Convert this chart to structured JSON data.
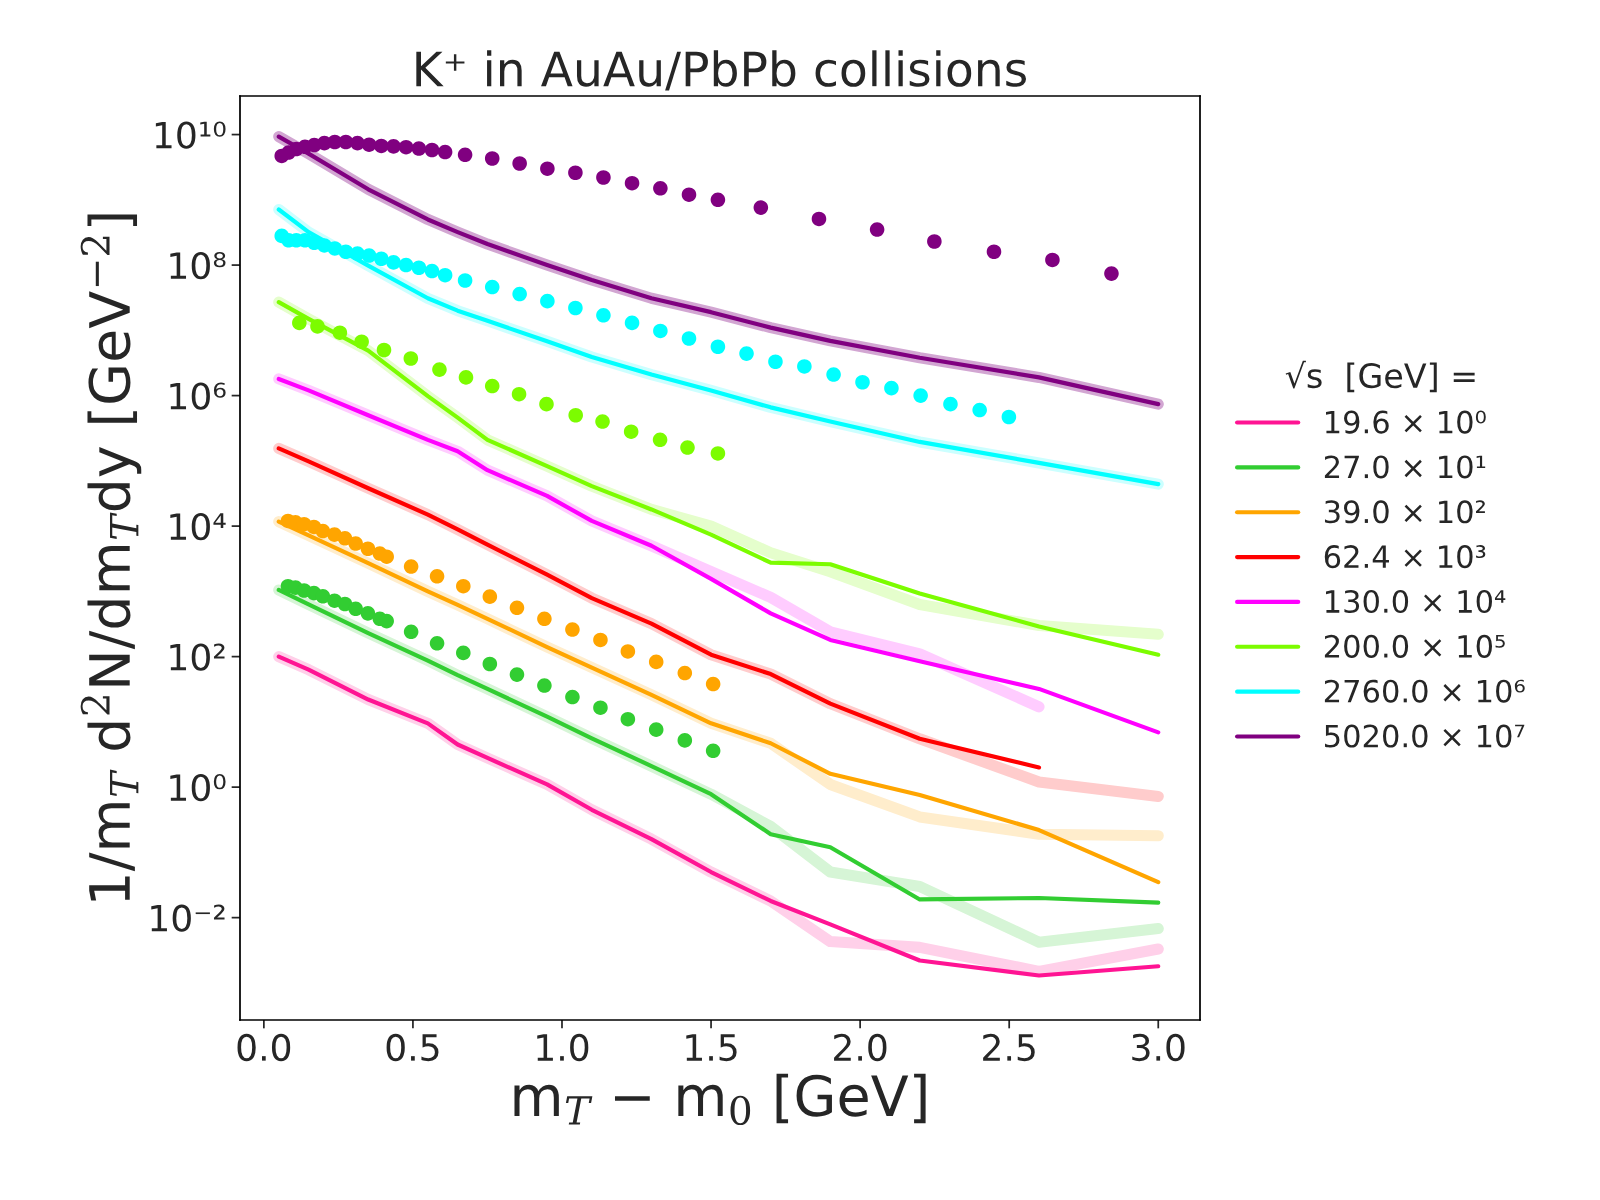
{
  "chart_data": {
    "type": "line",
    "title": "K⁺ in AuAu/PbPb collisions",
    "xlabel": "m$_{T}$ − m$_{0}$ [GeV]",
    "ylabel": "1/m$_{T}$ d$^{2}$N/dm$_{T}$dy [GeV$^{−2}$]",
    "legend_title": "√s  [GeV] =",
    "legend": "right",
    "grid": false,
    "log": "y",
    "xlim": [
      -0.08,
      3.14
    ],
    "ylim": [
      0.00027,
      39000000000.0
    ],
    "xticks": [
      {
        "value": 0,
        "label": "0.0"
      },
      {
        "value": 0.5,
        "label": "0.5"
      },
      {
        "value": 1,
        "label": "1.0"
      },
      {
        "value": 1.5,
        "label": "1.5"
      },
      {
        "value": 2,
        "label": "2.0"
      },
      {
        "value": 2.5,
        "label": "2.5"
      },
      {
        "value": 3,
        "label": "3.0"
      }
    ],
    "yticks": [
      {
        "value": 0.01,
        "label": "10⁻²"
      },
      {
        "value": 1,
        "label": "10⁰"
      },
      {
        "value": 100,
        "label": "10²"
      },
      {
        "value": 10000,
        "label": "10⁴"
      },
      {
        "value": 1000000,
        "label": "10⁶"
      },
      {
        "value": 100000000,
        "label": "10⁸"
      },
      {
        "value": 10000000000,
        "label": "10¹⁰"
      }
    ],
    "x": [
      0.05,
      0.15,
      0.35,
      0.55,
      0.65,
      0.75,
      0.95,
      1.1,
      1.3,
      1.5,
      1.7,
      1.9,
      2.2,
      2.6,
      3.0
    ],
    "series": [
      {
        "line_style": "solid",
        "color": "#ffd0e9",
        "values": [
          100,
          63,
          22,
          9.5,
          4.5,
          2.8,
          1.1,
          0.45,
          0.16,
          0.05,
          0.018,
          0.0043,
          0.0035,
          0.0015,
          0.0033
        ]
      },
      {
        "line_style": "solid",
        "color": "#d6f5d6",
        "values": [
          1050,
          630,
          230,
          87,
          52,
          32,
          12,
          5.6,
          2.1,
          0.78,
          0.25,
          0.05,
          0.03,
          0.0042,
          0.0068
        ]
      },
      {
        "line_style": "solid",
        "color": "#ffedcc",
        "values": [
          11700,
          7200,
          2700,
          1000,
          620,
          380,
          140,
          68,
          26,
          9.5,
          4.7,
          1.1,
          0.35,
          0.19,
          0.18
        ]
      },
      {
        "line_style": "solid",
        "color": "#ffcccc",
        "values": [
          155000,
          98000,
          38000,
          15000,
          8900,
          5200,
          1800,
          790,
          320,
          107,
          54,
          19,
          5.5,
          1.2,
          0.72
        ]
      },
      {
        "line_style": "solid",
        "color": "#ffccff",
        "values": [
          1800000,
          1200000,
          500000,
          210000,
          140000,
          72000,
          29000,
          12000,
          5000,
          2000,
          810,
          240,
          110,
          17,
          null
        ]
      },
      {
        "line_style": "solid",
        "color": "#e5fecc",
        "values": [
          27000000,
          15000000,
          4900000,
          980000,
          460000,
          210000,
          83000,
          41000,
          18000,
          10000,
          3900,
          2000,
          630,
          300,
          220
        ]
      },
      {
        "line_style": "solid",
        "color": "#ccffff",
        "values": [
          710000000,
          320000000,
          98000000,
          31000000,
          20000000,
          14000000,
          6800000,
          3900000,
          2100000,
          1200000,
          660000,
          400000,
          195000,
          93000,
          44000
        ]
      },
      {
        "line_style": "solid",
        "color": "#d2a6d2",
        "values": [
          9300000000,
          5100000000,
          1450000000,
          500000000,
          320000000,
          210000000,
          100000000,
          59000000,
          31000000,
          19000000,
          11000000,
          6900000,
          3800000,
          1900000,
          740000
        ]
      },
      {
        "line_style": "solid",
        "name": "19.6 × 10⁰",
        "color": "#ff1493",
        "values": [
          100,
          63,
          22,
          9.5,
          4.5,
          2.8,
          1.1,
          0.45,
          0.16,
          0.05,
          0.018,
          0.0079,
          0.0022,
          0.0013,
          0.0018
        ]
      },
      {
        "line_style": "solid",
        "name": "27.0 × 10¹",
        "color": "#32cd32",
        "values": [
          1050,
          630,
          230,
          87,
          52,
          32,
          12,
          5.6,
          2.1,
          0.78,
          0.19,
          0.12,
          0.019,
          0.02,
          0.017
        ]
      },
      {
        "line_style": "solid",
        "name": "39.0 × 10²",
        "color": "#ffa500",
        "values": [
          11700,
          7200,
          2700,
          1000,
          620,
          380,
          140,
          68,
          26,
          9.5,
          4.7,
          1.6,
          0.76,
          0.22,
          0.035
        ]
      },
      {
        "line_style": "solid",
        "name": "62.4 × 10³",
        "color": "#ff0000",
        "values": [
          155000,
          98000,
          38000,
          15000,
          8900,
          5200,
          1800,
          790,
          320,
          107,
          54,
          19,
          5.5,
          2.0,
          null
        ]
      },
      {
        "line_style": "solid",
        "name": "130.0 × 10⁴",
        "color": "#ff00ff",
        "values": [
          1800000,
          1200000,
          500000,
          210000,
          140000,
          72000,
          29000,
          12000,
          5000,
          1550,
          460,
          180,
          85,
          32,
          6.9
        ]
      },
      {
        "line_style": "solid",
        "name": "200.0 × 10⁵",
        "color": "#7cfc00",
        "values": [
          27000000,
          15000000,
          4900000,
          980000,
          460000,
          210000,
          83000,
          41000,
          18000,
          7400,
          2750,
          2600,
          930,
          290,
          107
        ]
      },
      {
        "line_style": "solid",
        "name": "2760.0 × 10⁶",
        "color": "#00ffff",
        "values": [
          710000000,
          320000000,
          98000000,
          31000000,
          20000000,
          14000000,
          6800000,
          3900000,
          2100000,
          1200000,
          660000,
          400000,
          195000,
          93000,
          44000
        ]
      },
      {
        "line_style": "solid",
        "name": "5020.0 × 10⁷",
        "color": "#800080",
        "values": [
          9300000000,
          5100000000,
          1450000000,
          500000000,
          320000000,
          210000000,
          100000000,
          59000000,
          31000000,
          19000000,
          11000000,
          6900000,
          3800000,
          1900000,
          740000
        ]
      },
      {
        "type": "scatter",
        "marker": "circle",
        "color": "#32cd32",
        "x": [
          0.081,
          0.106,
          0.135,
          0.168,
          0.198,
          0.237,
          0.272,
          0.308,
          0.349,
          0.389,
          0.412,
          0.494,
          0.581,
          0.669,
          0.758,
          0.849,
          0.941,
          1.035,
          1.129,
          1.221,
          1.316,
          1.412,
          1.507
        ],
        "values": [
          1200,
          1140,
          1030,
          940,
          840,
          720,
          640,
          540,
          460,
          380,
          350,
          240,
          160,
          114,
          77,
          53,
          36,
          24,
          16.5,
          11,
          7.6,
          5.2,
          3.6
        ]
      },
      {
        "type": "scatter",
        "marker": "circle",
        "color": "#ffa500",
        "x": [
          0.081,
          0.106,
          0.135,
          0.168,
          0.198,
          0.237,
          0.272,
          0.308,
          0.349,
          0.389,
          0.412,
          0.494,
          0.581,
          0.669,
          0.758,
          0.849,
          0.941,
          1.035,
          1.129,
          1.221,
          1.316,
          1.412,
          1.507
        ],
        "values": [
          12000,
          11400,
          10700,
          9700,
          8400,
          7400,
          6500,
          5400,
          4500,
          3800,
          3400,
          2400,
          1700,
          1200,
          830,
          560,
          380,
          260,
          180,
          120,
          83,
          56,
          38
        ]
      },
      {
        "type": "scatter",
        "marker": "circle",
        "color": "#7cfc00",
        "x": [
          0.119,
          0.18,
          0.255,
          0.328,
          0.403,
          0.493,
          0.589,
          0.678,
          0.766,
          0.856,
          0.948,
          1.046,
          1.136,
          1.232,
          1.329,
          1.421,
          1.523
        ],
        "values": [
          13000000,
          11500000,
          9200000,
          6700000,
          5000000,
          3700000,
          2500000,
          1900000,
          1400000,
          1050000,
          740000,
          500000,
          400000,
          280000,
          210000,
          160000,
          130000
        ]
      },
      {
        "type": "scatter",
        "marker": "circle",
        "color": "#00ffff",
        "x": [
          0.06,
          0.083,
          0.109,
          0.138,
          0.169,
          0.203,
          0.238,
          0.275,
          0.314,
          0.353,
          0.394,
          0.435,
          0.477,
          0.52,
          0.564,
          0.608,
          0.675,
          0.766,
          0.858,
          0.951,
          1.045,
          1.139,
          1.235,
          1.33,
          1.426,
          1.523,
          1.619,
          1.716,
          1.813,
          1.911,
          2.008,
          2.105,
          2.203,
          2.303,
          2.401,
          2.499
        ],
        "values": [
          280000000,
          240000000,
          240000000,
          240000000,
          220000000,
          200000000,
          180000000,
          160000000,
          150000000,
          140000000,
          125000000,
          110000000,
          100000000,
          91000000,
          81000000,
          70000000,
          58000000,
          46000000,
          36000000,
          28000000,
          22000000,
          17000000,
          13000000,
          9800000,
          7500000,
          5600000,
          4400000,
          3300000,
          2800000,
          2100000,
          1600000,
          1300000,
          1000000,
          740000,
          600000,
          470000
        ]
      },
      {
        "type": "scatter",
        "marker": "circle",
        "color": "#800080",
        "x": [
          0.06,
          0.083,
          0.109,
          0.138,
          0.169,
          0.203,
          0.238,
          0.275,
          0.314,
          0.353,
          0.394,
          0.435,
          0.477,
          0.52,
          0.564,
          0.608,
          0.675,
          0.766,
          0.858,
          0.951,
          1.045,
          1.139,
          1.235,
          1.33,
          1.426,
          1.523,
          1.667,
          1.862,
          2.057,
          2.249,
          2.449,
          2.645,
          2.843
        ],
        "values": [
          4700000000,
          5300000000,
          6000000000,
          6500000000,
          6900000000,
          7400000000,
          7700000000,
          7700000000,
          7400000000,
          7000000000,
          6700000000,
          6600000000,
          6400000000,
          6100000000,
          5800000000,
          5400000000,
          4900000000,
          4300000000,
          3600000000,
          3000000000,
          2600000000,
          2200000000,
          1800000000,
          1500000000,
          1200000000,
          1000000000,
          760000000,
          510000000,
          350000000,
          230000000,
          160000000,
          120000000,
          74000000
        ]
      }
    ]
  }
}
